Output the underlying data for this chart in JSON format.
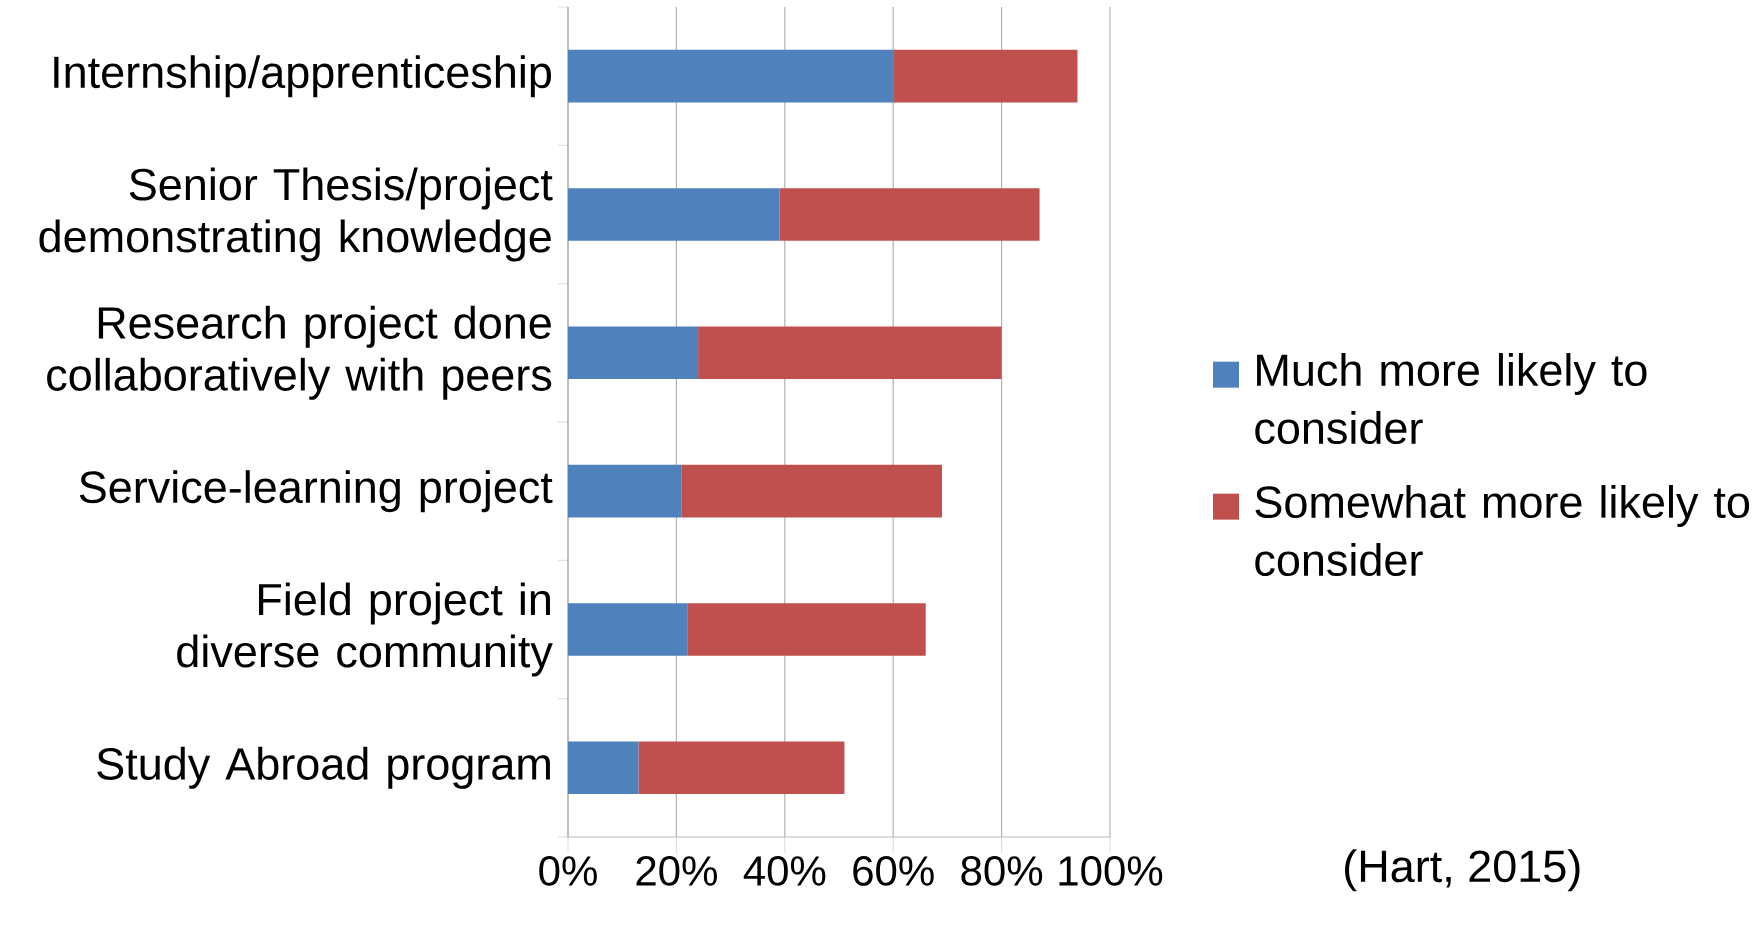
{
  "chart_data": {
    "type": "bar",
    "orientation": "horizontal",
    "stacked": true,
    "categories": [
      "Internship/apprenticeship",
      "Senior Thesis/project demonstrating knowledge",
      "Research project done collaboratively with peers",
      "Service-learning project",
      "Field project in diverse community",
      "Study Abroad program"
    ],
    "series": [
      {
        "name": "Much more likely to consider",
        "color": "#4f81bd",
        "values": [
          60,
          39,
          24,
          21,
          22,
          13
        ]
      },
      {
        "name": "Somewhat more likely to consider",
        "color": "#c0504d",
        "values": [
          34,
          48,
          56,
          48,
          44,
          38
        ]
      }
    ],
    "xlim": [
      0,
      100
    ],
    "xticks": [
      {
        "value": 0,
        "label": "0%"
      },
      {
        "value": 20,
        "label": "20%"
      },
      {
        "value": 40,
        "label": "40%"
      },
      {
        "value": 60,
        "label": "60%"
      },
      {
        "value": 80,
        "label": "80%"
      },
      {
        "value": 100,
        "label": "100%"
      }
    ],
    "grid": "x",
    "legend": "right",
    "annotations": [
      "(Hart, 2015)"
    ]
  }
}
